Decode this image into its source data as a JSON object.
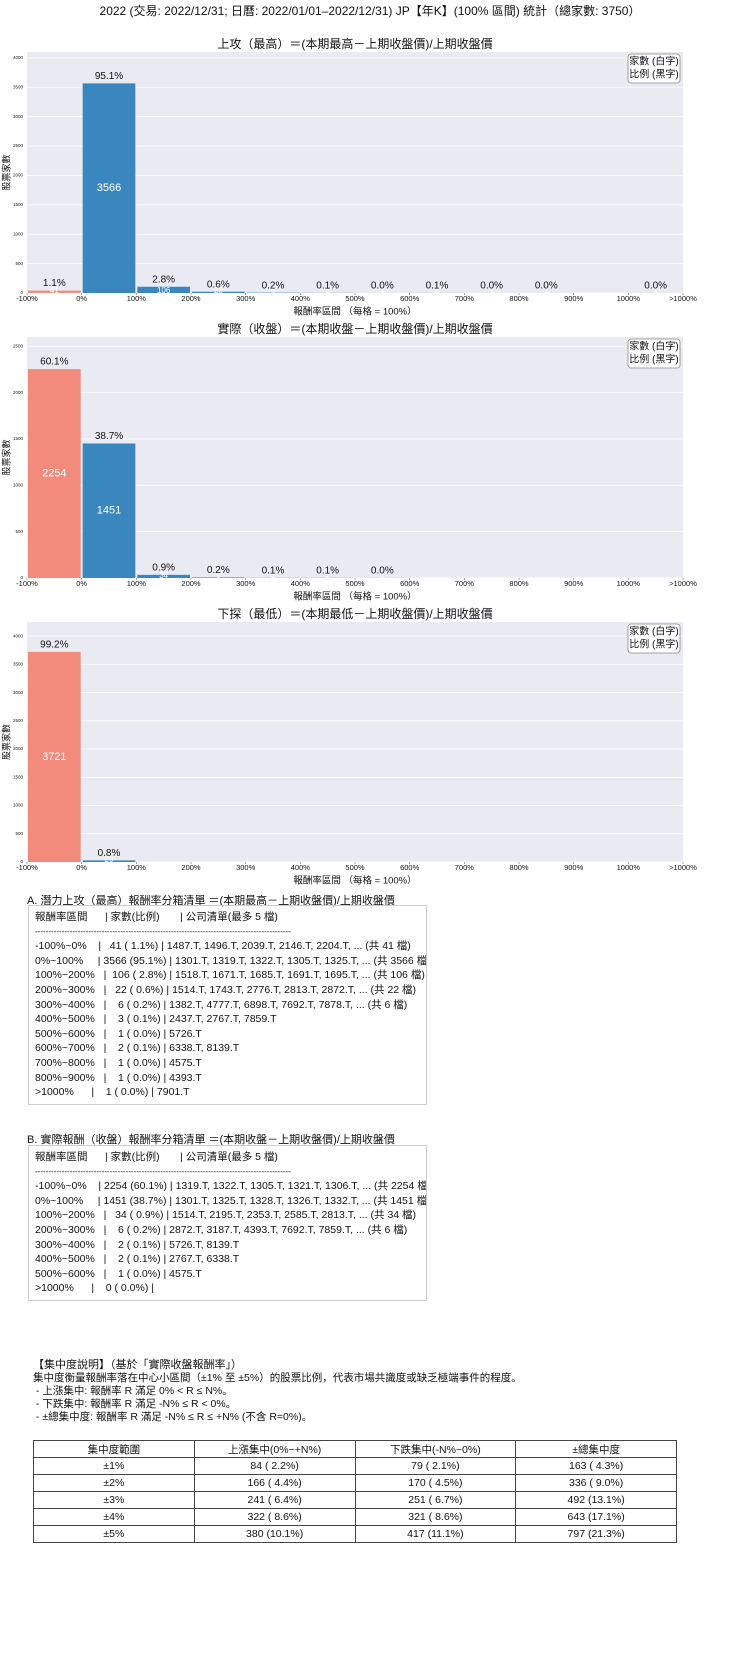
{
  "header": {
    "title": "2022 (交易: 2022/12/31; 日曆: 2022/01/01–2022/12/31) JP【年K】(100% 區間) 統計（總家數: 3750）"
  },
  "chart_data": [
    {
      "type": "histogram",
      "title": "上攻（最高）＝(本期最高－上期收盤價)/上期收盤價",
      "x_label": "報酬率區間 （每格 = 100%）",
      "y_label": "股票家數",
      "bins": [
        {
          "value": -100,
          "label": "-100%"
        },
        {
          "value": 0,
          "label": "0%"
        },
        {
          "value": 100,
          "label": "100%"
        },
        {
          "value": 200,
          "label": "200%"
        },
        {
          "value": 300,
          "label": "300%"
        },
        {
          "value": 400,
          "label": "400%"
        },
        {
          "value": 500,
          "label": "500%"
        },
        {
          "value": 600,
          "label": "600%"
        },
        {
          "value": 700,
          "label": "700%"
        },
        {
          "value": 800,
          "label": "800%"
        },
        {
          "value": 900,
          "label": "900%"
        },
        {
          "value": 1000,
          "label": "1000%"
        },
        {
          "value": 1100,
          "label": ">1000%"
        }
      ],
      "values": [
        41,
        3566,
        106,
        22,
        6,
        3,
        1,
        2,
        1,
        1,
        0,
        1
      ],
      "percent_labels": [
        "1.1%",
        "95.1%",
        "2.8%",
        "0.6%",
        "0.2%",
        "0.1%",
        "0.0%",
        "0.1%",
        "0.0%",
        "0.0%",
        null,
        "0.0%"
      ],
      "negative_color": "#f28b7c",
      "positive_color": "#3a87c0",
      "xlim": [
        -100,
        1100
      ],
      "ylim": [
        0,
        4100
      ],
      "yticks": [
        0,
        500,
        1000,
        1500,
        2000,
        2500,
        3000,
        3500,
        4000
      ],
      "grid": true,
      "legend_lines": [
        "家數 (白字)",
        "比例 (黑字)"
      ],
      "legend_position": "upper right"
    },
    {
      "type": "histogram",
      "title": "實際（收盤）＝(本期收盤－上期收盤價)/上期收盤價",
      "x_label": "報酬率區間 （每格 = 100%）",
      "y_label": "股票家數",
      "bins": [
        {
          "value": -100,
          "label": "-100%"
        },
        {
          "value": 0,
          "label": "0%"
        },
        {
          "value": 100,
          "label": "100%"
        },
        {
          "value": 200,
          "label": "200%"
        },
        {
          "value": 300,
          "label": "300%"
        },
        {
          "value": 400,
          "label": "400%"
        },
        {
          "value": 500,
          "label": "500%"
        },
        {
          "value": 600,
          "label": "600%"
        },
        {
          "value": 700,
          "label": "700%"
        },
        {
          "value": 800,
          "label": "800%"
        },
        {
          "value": 900,
          "label": "900%"
        },
        {
          "value": 1000,
          "label": "1000%"
        },
        {
          "value": 1100,
          "label": ">1000%"
        }
      ],
      "values": [
        2254,
        1451,
        34,
        6,
        2,
        2,
        1,
        0,
        0,
        0,
        0,
        0
      ],
      "percent_labels": [
        "60.1%",
        "38.7%",
        "0.9%",
        "0.2%",
        "0.1%",
        "0.1%",
        "0.0%",
        null,
        null,
        null,
        null,
        null
      ],
      "negative_color": "#f28b7c",
      "positive_color": "#3a87c0",
      "xlim": [
        -100,
        1100
      ],
      "ylim": [
        0,
        2600
      ],
      "yticks": [
        0,
        500,
        1000,
        1500,
        2000,
        2500
      ],
      "grid": true,
      "legend_lines": [
        "家數 (白字)",
        "比例 (黑字)"
      ],
      "legend_position": "upper right"
    },
    {
      "type": "histogram",
      "title": "下探（最低）＝(本期最低－上期收盤價)/上期收盤價",
      "x_label": "報酬率區間 （每格 = 100%）",
      "y_label": "股票家數",
      "bins": [
        {
          "value": -100,
          "label": "-100%"
        },
        {
          "value": 0,
          "label": "0%"
        },
        {
          "value": 100,
          "label": "100%"
        },
        {
          "value": 200,
          "label": "200%"
        },
        {
          "value": 300,
          "label": "300%"
        },
        {
          "value": 400,
          "label": "400%"
        },
        {
          "value": 500,
          "label": "500%"
        },
        {
          "value": 600,
          "label": "600%"
        },
        {
          "value": 700,
          "label": "700%"
        },
        {
          "value": 800,
          "label": "800%"
        },
        {
          "value": 900,
          "label": "900%"
        },
        {
          "value": 1000,
          "label": "1000%"
        },
        {
          "value": 1100,
          "label": ">1000%"
        }
      ],
      "values": [
        3721,
        29,
        0,
        0,
        0,
        0,
        0,
        0,
        0,
        0,
        0,
        0
      ],
      "percent_labels": [
        "99.2%",
        "0.8%",
        null,
        null,
        null,
        null,
        null,
        null,
        null,
        null,
        null,
        null
      ],
      "negative_color": "#f28b7c",
      "positive_color": "#3a87c0",
      "xlim": [
        -100,
        1100
      ],
      "ylim": [
        0,
        4250
      ],
      "yticks": [
        0,
        500,
        1000,
        1500,
        2000,
        2500,
        3000,
        3500,
        4000
      ],
      "grid": true,
      "legend_lines": [
        "家數 (白字)",
        "比例 (黑字)"
      ],
      "legend_position": "upper right"
    }
  ],
  "bin_lists": [
    {
      "title": "A. 潛力上攻（最高）報酬率分箱清單 ＝(本期最高－上期收盤價)/上期收盤價",
      "header_line": "報酬率區間      | 家數(比例)       | 公司清單(最多 5 檔)",
      "separator": "------------------------------------------------------------------------------------------------",
      "rows": [
        "-100%~0%    |   41 ( 1.1%) | 1487.T, 1496.T, 2039.T, 2146.T, 2204.T, ... (共 41 檔)",
        "0%~100%     | 3566 (95.1%) | 1301.T, 1319.T, 1322.T, 1305.T, 1325.T, ... (共 3566 檔)",
        "100%~200%   |  106 ( 2.8%) | 1518.T, 1671.T, 1685.T, 1691.T, 1695.T, ... (共 106 檔)",
        "200%~300%   |   22 ( 0.6%) | 1514.T, 1743.T, 2776.T, 2813.T, 2872.T, ... (共 22 檔)",
        "300%~400%   |    6 ( 0.2%) | 1382.T, 4777.T, 6898.T, 7692.T, 7878.T, ... (共 6 檔)",
        "400%~500%   |    3 ( 0.1%) | 2437.T, 2767.T, 7859.T",
        "500%~600%   |    1 ( 0.0%) | 5726.T",
        "600%~700%   |    2 ( 0.1%) | 6338.T, 8139.T",
        "700%~800%   |    1 ( 0.0%) | 4575.T",
        "800%~900%   |    1 ( 0.0%) | 4393.T",
        ">1000%      |    1 ( 0.0%) | 7901.T"
      ]
    },
    {
      "title": "B. 實際報酬（收盤）報酬率分箱清單 ＝(本期收盤－上期收盤價)/上期收盤價",
      "header_line": "報酬率區間      | 家數(比例)       | 公司清單(最多 5 檔)",
      "separator": "------------------------------------------------------------------------------------------------",
      "rows": [
        "-100%~0%    | 2254 (60.1%) | 1319.T, 1322.T, 1305.T, 1321.T, 1306.T, ... (共 2254 檔)",
        "0%~100%     | 1451 (38.7%) | 1301.T, 1325.T, 1328.T, 1326.T, 1332.T, ... (共 1451 檔)",
        "100%~200%   |   34 ( 0.9%) | 1514.T, 2195.T, 2353.T, 2585.T, 2813.T, ... (共 34 檔)",
        "200%~300%   |    6 ( 0.2%) | 2872.T, 3187.T, 4393.T, 7692.T, 7859.T, ... (共 6 檔)",
        "300%~400%   |    2 ( 0.1%) | 5726.T, 8139.T",
        "400%~500%   |    2 ( 0.1%) | 2767.T, 6338.T",
        "500%~600%   |    1 ( 0.0%) | 4575.T",
        ">1000%      |    0 ( 0.0%) |"
      ]
    }
  ],
  "concentration": {
    "title": "【集中度說明】（基於「實際收盤報酬率」）",
    "lines": [
      "集中度衡量報酬率落在中心小區間（±1% 至 ±5%）的股票比例，代表市場共識度或缺乏極端事件的程度。",
      " - 上漲集中: 報酬率 R 滿足 0% < R ≤ N%。",
      " - 下跌集中: 報酬率 R 滿足 -N% ≤ R < 0%。",
      " - ±總集中度: 報酬率 R 滿足 -N% ≤ R ≤ +N% (不含 R=0%)。"
    ],
    "table": {
      "headers": [
        "集中度範圍",
        "上漲集中(0%~+N%)",
        "下跌集中(-N%~0%)",
        "±總集中度"
      ],
      "rows": [
        [
          "±1%",
          "84 ( 2.2%)",
          "79 ( 2.1%)",
          "163 ( 4.3%)"
        ],
        [
          "±2%",
          "166 ( 4.4%)",
          "170 ( 4.5%)",
          "336 ( 9.0%)"
        ],
        [
          "±3%",
          "241 ( 6.4%)",
          "251 ( 6.7%)",
          "492 (13.1%)"
        ],
        [
          "±4%",
          "322 ( 8.6%)",
          "321 ( 8.6%)",
          "643 (17.1%)"
        ],
        [
          "±5%",
          "380 (10.1%)",
          "417 (11.1%)",
          "797 (21.3%)"
        ]
      ]
    }
  }
}
